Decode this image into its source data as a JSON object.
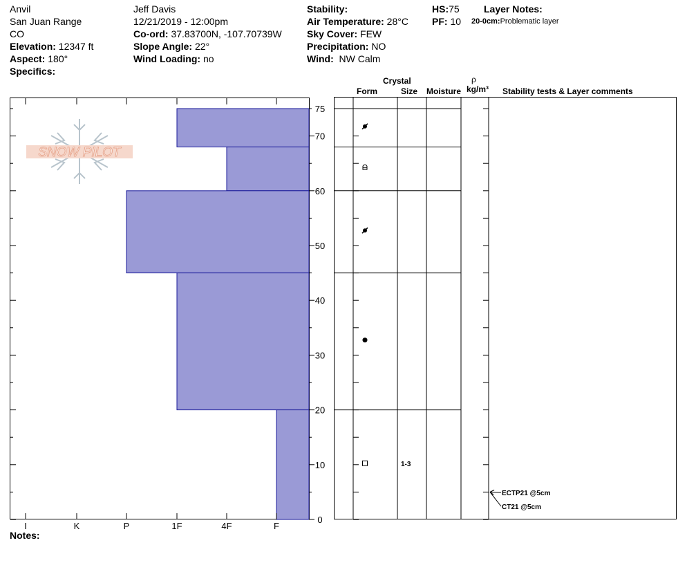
{
  "header": {
    "location": "Anvil",
    "range": "San Juan Range",
    "state": "CO",
    "elevation_label": "Elevation:",
    "elevation_value": "12347 ft",
    "aspect_label": "Aspect:",
    "aspect_value": "180°",
    "specifics_label": "Specifics:",
    "observer": "Jeff Davis",
    "datetime": "12/21/2019 - 12:00pm",
    "coord_label": "Co-ord:",
    "coord_value": "37.83700N, -107.70739W",
    "slope_label": "Slope Angle:",
    "slope_value": "22°",
    "wind_loading_label": "Wind Loading:",
    "wind_loading_value": "no",
    "stability_label": "Stability:",
    "stability_value": "",
    "air_temp_label": "Air Temperature:",
    "air_temp_value": "28°C",
    "sky_label": "Sky Cover:",
    "sky_value": "FEW",
    "precip_label": "Precipitation:",
    "precip_value": "NO",
    "wind_label": "Wind:",
    "wind_value": "NW Calm",
    "hs_label": "HS:",
    "hs_value": "75",
    "pf_label": "PF:",
    "pf_value": "10",
    "layer_notes_label": "Layer Notes:",
    "layer_note_range": "20-0cm:",
    "layer_note_text": "Problematic layer"
  },
  "columns": {
    "crystal": "Crystal",
    "form": "Form",
    "size": "Size",
    "moisture": "Moisture",
    "rho": "ρ",
    "density_unit": "kg/m³",
    "stability_comments": "Stability tests & Layer comments"
  },
  "notes_label": "Notes:",
  "logo_text": "SNOW PILOT",
  "colors": {
    "bar_fill": "#9a9ad6",
    "bar_stroke": "#1a1a9a",
    "logo_text": "#e8a890",
    "logo_flake": "#b8c4cc"
  },
  "chart_data": {
    "type": "bar",
    "orientation": "horizontal-stepped",
    "x_categories": [
      "I",
      "K",
      "P",
      "1F",
      "4F",
      "F"
    ],
    "x_index_scale": [
      1,
      2,
      3,
      4,
      5,
      6
    ],
    "y_ticks": [
      0,
      10,
      20,
      30,
      40,
      50,
      60,
      70,
      75
    ],
    "ylim": [
      0,
      75
    ],
    "layers": [
      {
        "bottom": 68,
        "top": 75,
        "hardness": "1F",
        "form": "decomposing",
        "size": ""
      },
      {
        "bottom": 60,
        "top": 68,
        "hardness": "4F",
        "form": "rounding-faceted",
        "size": ""
      },
      {
        "bottom": 45,
        "top": 60,
        "hardness": "P",
        "form": "decomposing",
        "size": ""
      },
      {
        "bottom": 20,
        "top": 45,
        "hardness": "1F",
        "form": "rounded",
        "size": ""
      },
      {
        "bottom": 0,
        "top": 20,
        "hardness": "F",
        "form": "faceted",
        "size": "1-3"
      }
    ],
    "stability_tests": [
      {
        "label": "ECTP21 @5cm",
        "depth": 5
      },
      {
        "label": "CT21 @5cm",
        "depth": 5
      }
    ]
  }
}
